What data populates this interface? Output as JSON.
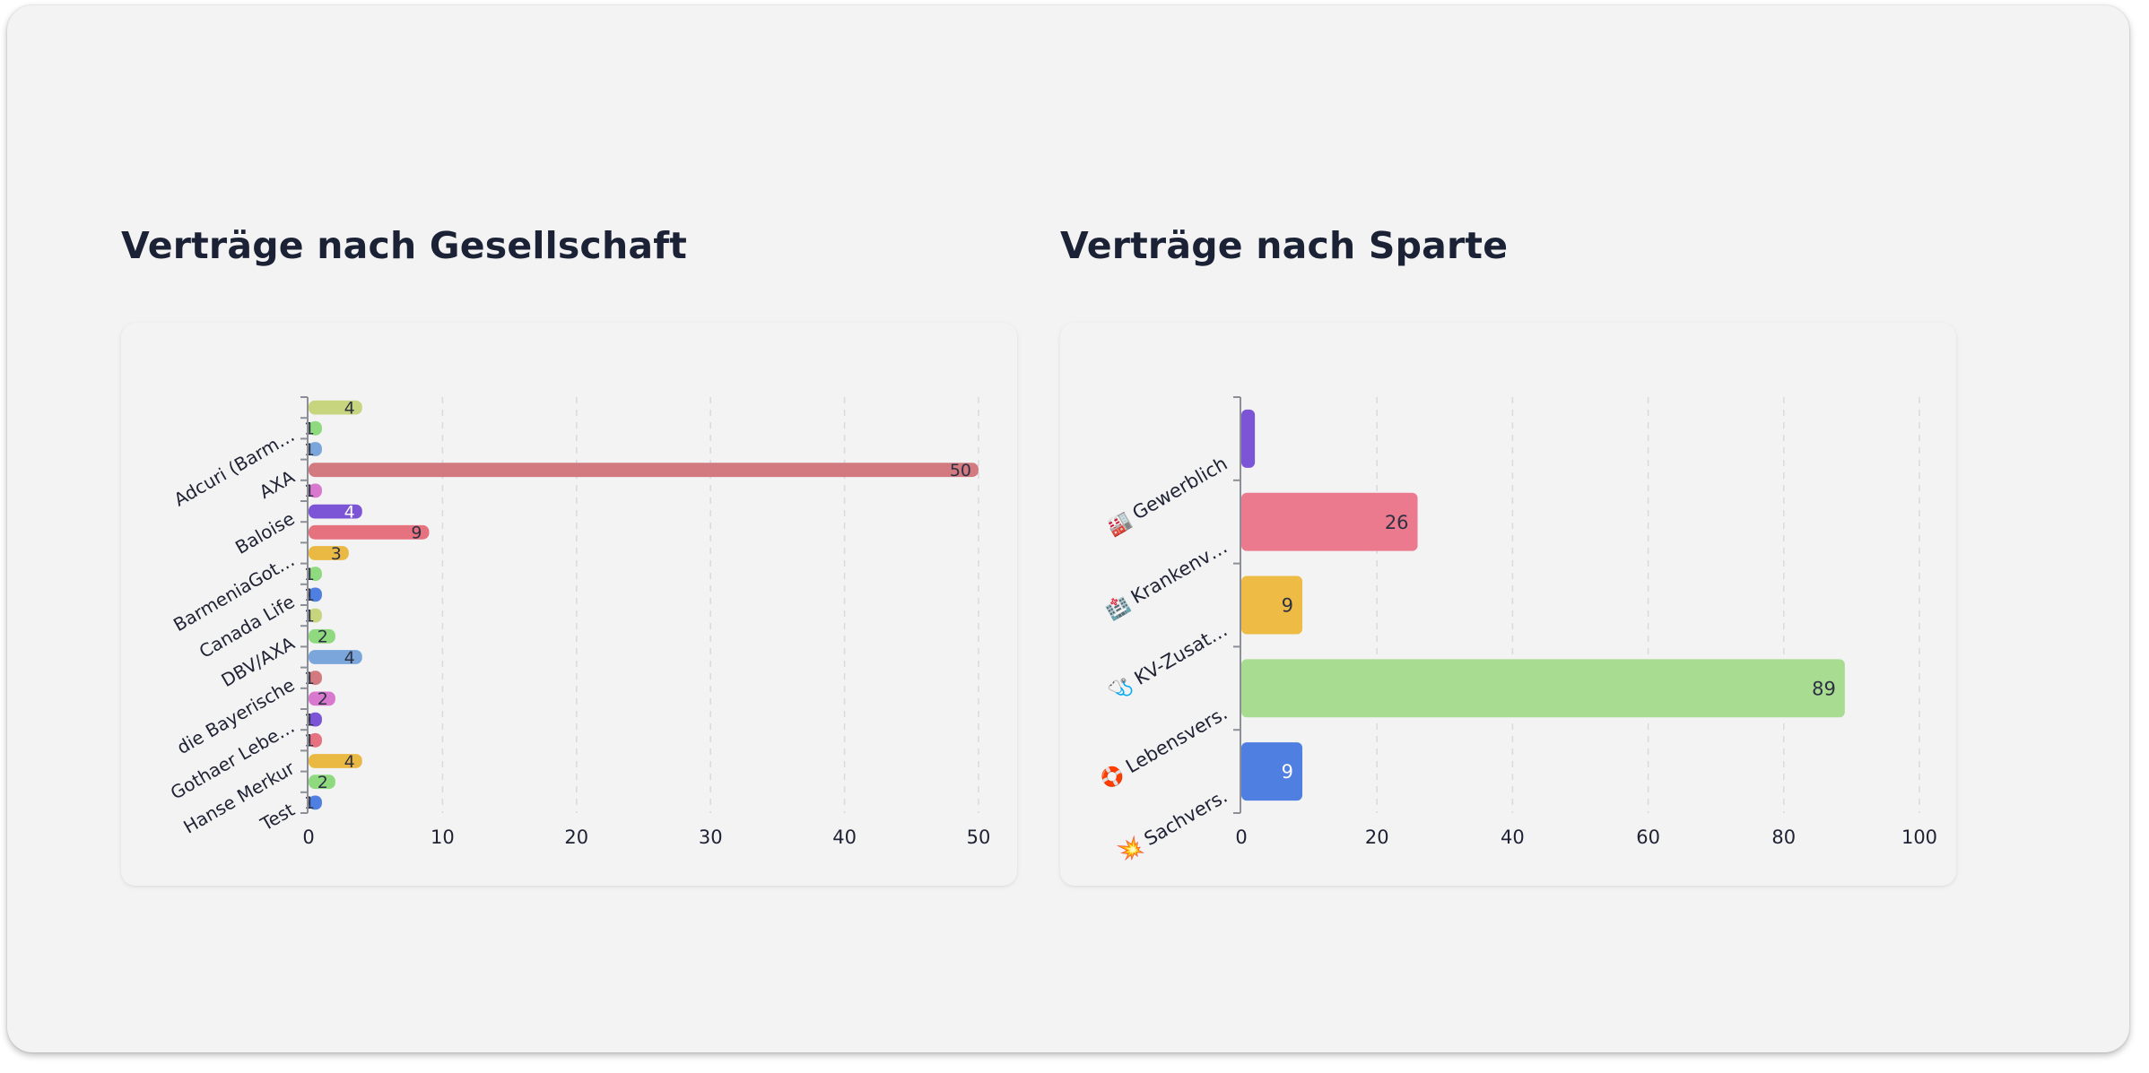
{
  "sections": [
    {
      "title": "Verträge nach Gesellschaft"
    },
    {
      "title": "Verträge nach Sparte"
    }
  ],
  "chart_data": [
    {
      "type": "bar",
      "orientation": "horizontal",
      "title": "Verträge nach Gesellschaft",
      "categories": [
        "",
        "Adcuri (Barm…",
        "",
        "AXA",
        "",
        "Baloise",
        "",
        "BarmeniaGot…",
        "",
        "Canada Life",
        "",
        "DBV/AXA",
        "",
        "die Bayerische",
        "",
        "Gothaer Lebe…",
        "",
        "Hanse Merkur",
        "",
        "Test"
      ],
      "values": [
        4,
        1,
        1,
        50,
        1,
        4,
        9,
        3,
        1,
        1,
        1,
        2,
        4,
        1,
        2,
        1,
        1,
        4,
        2,
        1
      ],
      "colors": [
        "#c7d67e",
        "#8fd97f",
        "#7aa6db",
        "#d37a80",
        "#d978cf",
        "#7b55d6",
        "#e6727f",
        "#eab944",
        "#8fd97f",
        "#4f7fe0",
        "#c7d67e",
        "#8fd97f",
        "#7aa6db",
        "#d37a80",
        "#d978cf",
        "#7b55d6",
        "#e6727f",
        "#eab944",
        "#8fd97f",
        "#4f7fe0"
      ],
      "label_colors": [
        "dark",
        "dark",
        "dark",
        "dark",
        "dark",
        "light",
        "dark",
        "dark",
        "dark",
        "dark",
        "dark",
        "dark",
        "dark",
        "dark",
        "dark",
        "dark",
        "dark",
        "dark",
        "dark",
        "dark"
      ],
      "xlim": [
        0,
        50
      ],
      "xticks": [
        "0",
        "10",
        "20",
        "30",
        "40",
        "50"
      ],
      "grid": true,
      "xlabel": "",
      "ylabel": ""
    },
    {
      "type": "bar",
      "orientation": "horizontal",
      "title": "Verträge nach Sparte",
      "categories": [
        "🏭 Gewerblich",
        "🏥 Krankenv…",
        "🩺 KV-Zusat…",
        "🛟 Lebensvers.",
        "💥 Sachvers."
      ],
      "values": [
        2,
        26,
        9,
        89,
        9
      ],
      "value_labels": [
        "",
        "26",
        "9",
        "89",
        "9"
      ],
      "colors": [
        "#7b55d6",
        "#ec7a8f",
        "#eebb44",
        "#a8dc90",
        "#4f7fe0"
      ],
      "label_colors": [
        "dark",
        "dark",
        "dark",
        "dark",
        "light"
      ],
      "xlim": [
        0,
        100
      ],
      "xticks": [
        "0",
        "20",
        "40",
        "60",
        "80",
        "100"
      ],
      "grid": true,
      "xlabel": "",
      "ylabel": ""
    }
  ]
}
